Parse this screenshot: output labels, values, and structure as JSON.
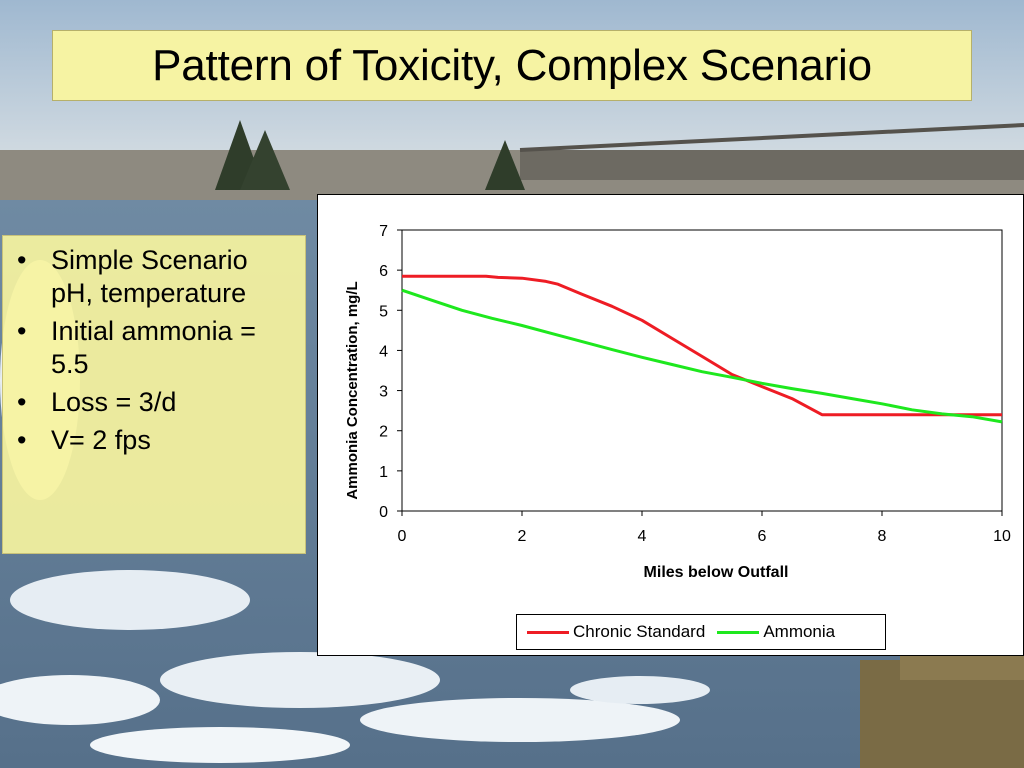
{
  "slide": {
    "title": "Pattern of Toxicity, Complex Scenario"
  },
  "bullets": [
    {
      "marker": "•",
      "text": "Simple Scenario pH, temperature"
    },
    {
      "marker": "•",
      "text": "Initial ammonia = 5.5"
    },
    {
      "marker": "•",
      "text": "Loss = 3/d"
    },
    {
      "marker": "•",
      "text": "V= 2 fps"
    }
  ],
  "colors": {
    "title_bg": "#f6f3a3",
    "chronic": "#ee1c24",
    "ammonia": "#1ee81e"
  },
  "chart_data": {
    "type": "line",
    "xlabel": "Miles below Outfall",
    "ylabel": "Ammonia Concentration, mg/L",
    "xlim": [
      0,
      10
    ],
    "ylim": [
      0,
      7
    ],
    "xticks": [
      0,
      2,
      4,
      6,
      8,
      10
    ],
    "yticks": [
      0,
      1,
      2,
      3,
      4,
      5,
      6,
      7
    ],
    "grid": false,
    "legend_position": "bottom",
    "series": [
      {
        "name": "Chronic Standard",
        "color": "#ee1c24",
        "x": [
          0,
          0.5,
          1,
          1.4,
          1.6,
          2,
          2.4,
          2.6,
          3,
          3.5,
          4,
          4.5,
          5,
          5.5,
          6,
          6.5,
          7,
          8,
          9,
          10
        ],
        "y": [
          5.85,
          5.85,
          5.85,
          5.85,
          5.82,
          5.8,
          5.72,
          5.65,
          5.4,
          5.1,
          4.75,
          4.3,
          3.85,
          3.4,
          3.1,
          2.8,
          2.4,
          2.4,
          2.4,
          2.4
        ]
      },
      {
        "name": "Ammonia",
        "color": "#1ee81e",
        "x": [
          0,
          0.5,
          1,
          1.5,
          2,
          2.5,
          3,
          3.5,
          4,
          4.5,
          5,
          5.5,
          6,
          6.5,
          7,
          7.5,
          8,
          8.5,
          9,
          9.5,
          10
        ],
        "y": [
          5.5,
          5.25,
          5.0,
          4.8,
          4.62,
          4.42,
          4.22,
          4.02,
          3.83,
          3.65,
          3.47,
          3.33,
          3.18,
          3.05,
          2.93,
          2.8,
          2.67,
          2.52,
          2.42,
          2.35,
          2.22
        ]
      }
    ]
  }
}
